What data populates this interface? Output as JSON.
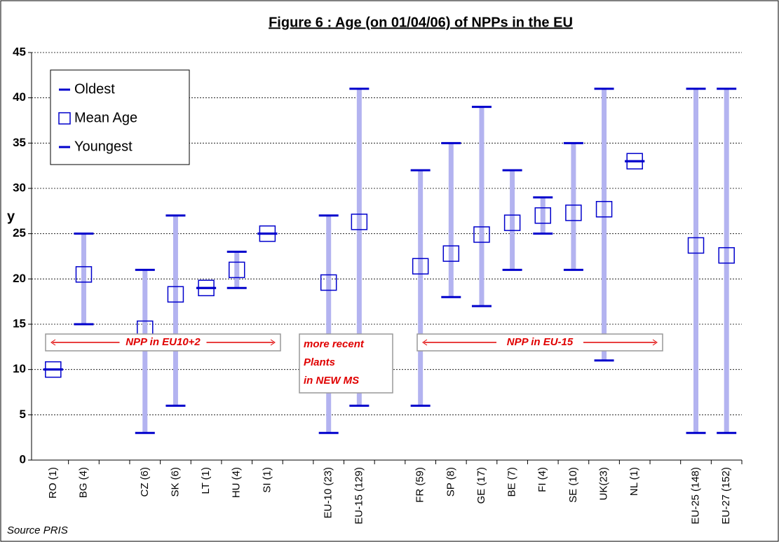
{
  "chart_data": {
    "type": "range",
    "title": "Figure 6 : Age (on 01/04/06) of NPPs in the EU",
    "y_label": "y",
    "source": "Source PRIS",
    "categories": [
      "RO (1)",
      "BG (4)",
      null,
      "CZ (6)",
      "SK (6)",
      "LT (1)",
      "HU (4)",
      "SI (1)",
      null,
      "EU-10 (23)",
      "EU-15 (129)",
      null,
      "FR (59)",
      "SP (8)",
      "GE (17)",
      "BE (7)",
      "FI (4)",
      "SE (10)",
      "UK(23)",
      "NL (1)",
      null,
      "EU-25 (148)",
      "EU-27 (152)"
    ],
    "series": [
      {
        "name": "Oldest",
        "color": "#0000cc",
        "values": [
          10,
          25,
          null,
          21,
          27,
          19,
          23,
          25,
          null,
          27,
          41,
          null,
          32,
          35,
          39,
          32,
          29,
          35,
          41,
          33,
          null,
          41,
          41
        ]
      },
      {
        "name": "Mean Age",
        "color": "#0000cc",
        "values": [
          10,
          20.5,
          null,
          14.5,
          18.3,
          19,
          21,
          25,
          null,
          19.6,
          26.3,
          null,
          21.4,
          22.8,
          24.9,
          26.2,
          27,
          27.3,
          27.7,
          33,
          null,
          23.7,
          22.6
        ]
      },
      {
        "name": "Youngest",
        "color": "#0000cc",
        "values": [
          10,
          15,
          null,
          3,
          6,
          19,
          19,
          25,
          null,
          3,
          6,
          null,
          6,
          18,
          17,
          21,
          25,
          21,
          11,
          33,
          null,
          3,
          3
        ]
      }
    ],
    "range_color": "#b3b3f0",
    "ylim": [
      0,
      45
    ],
    "yticks": [
      0,
      5,
      10,
      15,
      20,
      25,
      30,
      35,
      40,
      45
    ],
    "grid": true,
    "legend": "top-left",
    "annotations": [
      {
        "lines": [
          "NPP in EU10+2"
        ]
      },
      {
        "lines": [
          "more recent",
          "Plants",
          "in NEW MS"
        ]
      },
      {
        "lines": [
          "NPP in EU-15"
        ]
      }
    ]
  }
}
